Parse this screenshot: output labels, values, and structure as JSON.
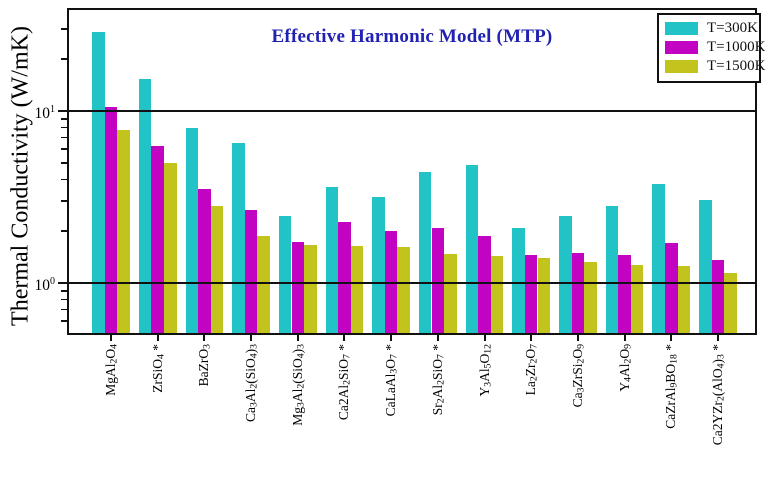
{
  "figure": {
    "background": "#ffffff",
    "axis_color": "#111111",
    "title_color": "#2121b2"
  },
  "chart_data": {
    "type": "bar",
    "scale": "log-y",
    "title": "Effective Harmonic Model (MTP)",
    "xlabel": "",
    "ylabel": "Thermal Conductivity (W/mK)",
    "ylim": [
      0.5,
      39.7
    ],
    "grid": "horizontal lines at 1 and 10, drawn over bars",
    "legend_position": "top-right",
    "categories": [
      "MgAl_2O_4",
      "ZrSiO_4 *",
      "BaZrO_3",
      "Ca_3Al_2(SiO_4)_3",
      "Mg_3Al_2(SiO_4)_3",
      "Ca2Al_2SiO_7 *",
      "CaLaAl_3O_7 *",
      "Sr_2Al_2SiO_7 *",
      "Y_3Al_5O_12",
      "La_2Zr_2O_7",
      "Ca_3ZrSi_2O_9",
      "Y_4Al_2O_9",
      "CaZrAl_9BO_18 *",
      "Ca2YZr_2(AlO_4)_3 *"
    ],
    "series": [
      {
        "name": "T=300K",
        "color": "#22c3c7",
        "values": [
          29.0,
          15.3,
          8.0,
          6.5,
          2.46,
          3.6,
          3.16,
          4.45,
          4.85,
          2.08,
          2.45,
          2.82,
          3.75,
          3.05
        ]
      },
      {
        "name": "T=1000K",
        "color": "#c204c2",
        "values": [
          10.5,
          6.3,
          3.5,
          2.65,
          1.74,
          2.25,
          2.0,
          2.08,
          1.87,
          1.45,
          1.49,
          1.46,
          1.7,
          1.36
        ]
      },
      {
        "name": "T=1500K",
        "color": "#c3c31e",
        "values": [
          7.8,
          5.0,
          2.8,
          1.88,
          1.66,
          1.65,
          1.63,
          1.47,
          1.44,
          1.39,
          1.32,
          1.28,
          1.26,
          1.14
        ]
      }
    ],
    "yticks_major": [
      {
        "value": 10,
        "base": "10",
        "exp": "1"
      },
      {
        "value": 1,
        "base": "10",
        "exp": "0"
      }
    ],
    "yticks_minor": [
      30,
      20,
      9,
      8,
      7,
      6,
      5,
      4,
      3,
      2,
      0.9,
      0.8,
      0.7,
      0.6
    ],
    "gridline_values": [
      10,
      1
    ]
  }
}
